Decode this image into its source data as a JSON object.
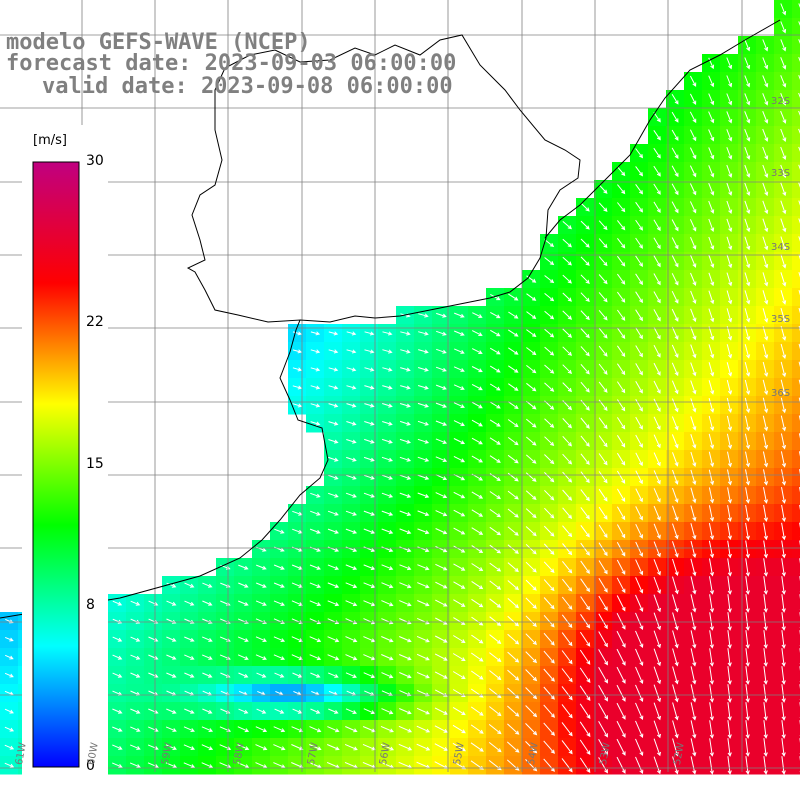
{
  "header": {
    "line1": "modelo GEFS-WAVE (NCEP)",
    "line2": "forecast date: 2023-09-03 06:00:00",
    "line3": "valid date: 2023-09-08 06:00:00"
  },
  "colorbar": {
    "unit": "[m/s]",
    "ticks": [
      "30",
      "22",
      "15",
      "8",
      "0"
    ],
    "tick_values": [
      30,
      22,
      15,
      8,
      0
    ],
    "vmin": 0,
    "vmax": 30,
    "colors": [
      "#0000ff",
      "#00ffff",
      "#00ff00",
      "#ffff00",
      "#ff0000",
      "#c00080"
    ]
  },
  "grid": {
    "lat_labels": [
      "32S",
      "33S",
      "34S",
      "35S",
      "36S"
    ],
    "lon_labels": [
      "61W",
      "60W",
      "59W",
      "58W",
      "57W",
      "56W",
      "55W",
      "54W",
      "53W",
      "52W"
    ]
  },
  "map": {
    "ocean_speed_range_ms": [
      2,
      26
    ],
    "palette_note": "wind speed",
    "land_color": "#ffffff",
    "coast_color": "#000000",
    "grid_color": "#808080"
  }
}
